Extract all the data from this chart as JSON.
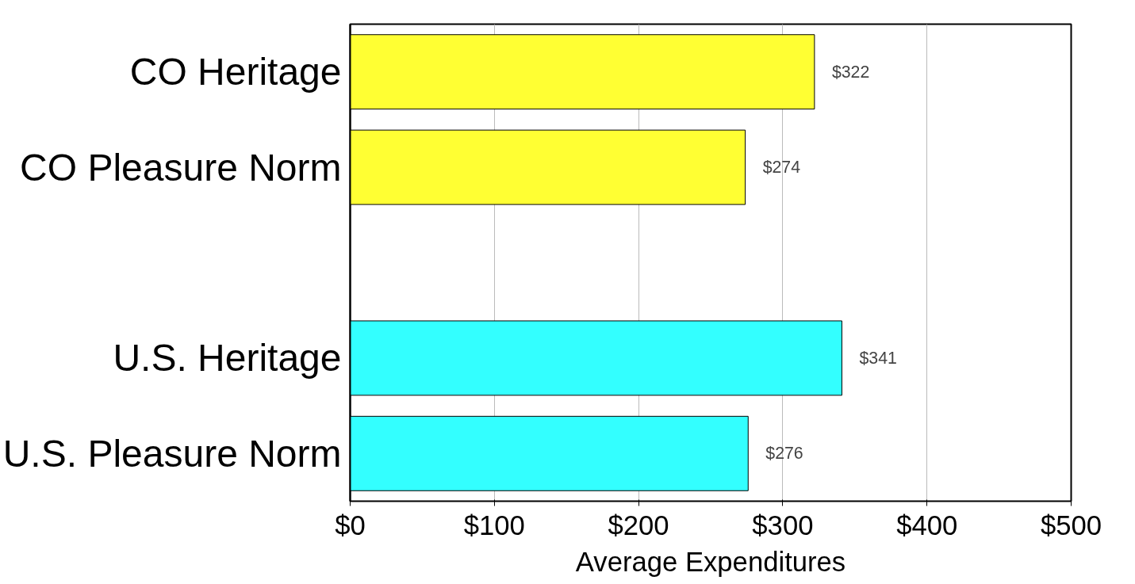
{
  "chart_data": {
    "type": "bar",
    "orientation": "horizontal",
    "xlabel": "Average Expenditures",
    "categories": [
      "CO Heritage",
      "CO Pleasure Norm",
      null,
      "U.S. Heritage",
      "U.S. Pleasure Norm"
    ],
    "values": [
      322,
      274,
      null,
      341,
      276
    ],
    "colors": [
      "#ffff33",
      "#ffff33",
      "#ffffff",
      "#33ffff",
      "#33ffff"
    ],
    "value_labels": [
      "$322",
      "$274",
      null,
      "$341",
      "$276"
    ],
    "xlim": [
      0,
      500
    ],
    "xticks": [
      {
        "value": 0,
        "label": "$0"
      },
      {
        "value": 100,
        "label": "$100"
      },
      {
        "value": 200,
        "label": "$200"
      },
      {
        "value": 300,
        "label": "$300"
      },
      {
        "value": 400,
        "label": "$400"
      },
      {
        "value": 500,
        "label": "$500"
      }
    ],
    "grid": "x"
  }
}
